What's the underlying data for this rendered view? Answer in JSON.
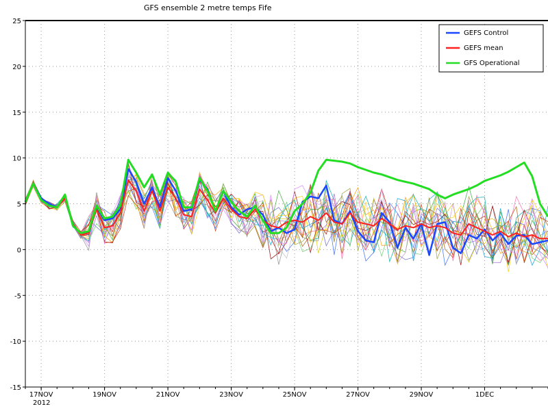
{
  "chart_data": {
    "type": "line",
    "title": "GFS  ensemble 2 metre temps Fife",
    "xlabel": "",
    "ylabel": "",
    "ylim": [
      -15,
      25
    ],
    "yticks": [
      -15,
      -10,
      -5,
      0,
      5,
      10,
      15,
      20,
      25
    ],
    "xlim": [
      "2012-11-16 12:00",
      "2012-12-03 00:00"
    ],
    "xtick_labels": [
      "17NOV",
      "19NOV",
      "21NOV",
      "23NOV",
      "25NOV",
      "27NOV",
      "29NOV",
      "1DEC"
    ],
    "xtick_year_label": "2012",
    "grid": true,
    "legend_position": "top-right",
    "x_dates": [
      "2012-11-16 12:00",
      "2012-11-16 18:00",
      "2012-11-17 00:00",
      "2012-11-17 06:00",
      "2012-11-17 12:00",
      "2012-11-17 18:00",
      "2012-11-18 00:00",
      "2012-11-18 06:00",
      "2012-11-18 12:00",
      "2012-11-18 18:00",
      "2012-11-19 00:00",
      "2012-11-19 06:00",
      "2012-11-19 12:00",
      "2012-11-19 18:00",
      "2012-11-20 00:00",
      "2012-11-20 06:00",
      "2012-11-20 12:00",
      "2012-11-20 18:00",
      "2012-11-21 00:00",
      "2012-11-21 06:00",
      "2012-11-21 12:00",
      "2012-11-21 18:00",
      "2012-11-22 00:00",
      "2012-11-22 06:00",
      "2012-11-22 12:00",
      "2012-11-22 18:00",
      "2012-11-23 00:00",
      "2012-11-23 06:00",
      "2012-11-23 12:00",
      "2012-11-23 18:00",
      "2012-11-24 00:00",
      "2012-11-24 06:00",
      "2012-11-24 12:00",
      "2012-11-24 18:00",
      "2012-11-25 00:00",
      "2012-11-25 06:00",
      "2012-11-25 12:00",
      "2012-11-25 18:00",
      "2012-11-26 00:00",
      "2012-11-26 06:00",
      "2012-11-26 12:00",
      "2012-11-26 18:00",
      "2012-11-27 00:00",
      "2012-11-27 06:00",
      "2012-11-27 12:00",
      "2012-11-27 18:00",
      "2012-11-28 00:00",
      "2012-11-28 06:00",
      "2012-11-28 12:00",
      "2012-11-28 18:00",
      "2012-11-29 00:00",
      "2012-11-29 06:00",
      "2012-11-29 12:00",
      "2012-11-29 18:00",
      "2012-11-30 00:00",
      "2012-11-30 06:00",
      "2012-11-30 12:00",
      "2012-11-30 18:00",
      "2012-12-01 00:00",
      "2012-12-01 06:00",
      "2012-12-01 12:00",
      "2012-12-01 18:00",
      "2012-12-02 00:00",
      "2012-12-02 06:00",
      "2012-12-02 12:00",
      "2012-12-02 18:00",
      "2012-12-03 00:00"
    ],
    "series": [
      {
        "name": "GEFS Control",
        "color": "#1a47ff",
        "width": 2.5,
        "values": [
          5.2,
          7.2,
          5.6,
          5.0,
          4.6,
          6.0,
          2.6,
          1.8,
          1.9,
          4.6,
          3.2,
          3.4,
          4.4,
          8.8,
          7.4,
          5.0,
          6.8,
          4.6,
          7.8,
          6.4,
          4.2,
          4.4,
          7.6,
          6.6,
          4.2,
          6.4,
          4.6,
          3.8,
          4.4,
          4.6,
          3.8,
          2.0,
          2.4,
          1.8,
          2.2,
          5.2,
          5.8,
          5.6,
          7.0,
          3.2,
          2.8,
          4.2,
          2.0,
          1.0,
          0.8,
          4.0,
          3.0,
          0.2,
          2.4,
          1.2,
          2.8,
          -0.6,
          2.8,
          3.0,
          0.2,
          -0.4,
          1.6,
          1.2,
          2.2,
          1.0,
          1.8,
          0.6,
          1.5,
          1.6,
          0.6,
          0.8,
          1.0
        ]
      },
      {
        "name": "GEFS mean",
        "color": "#ff2020",
        "width": 2,
        "values": [
          5.2,
          7.2,
          5.4,
          4.8,
          4.6,
          5.6,
          2.8,
          1.6,
          1.8,
          4.4,
          2.4,
          2.6,
          4.0,
          7.6,
          6.4,
          4.2,
          6.4,
          4.2,
          6.8,
          5.6,
          3.8,
          3.6,
          6.6,
          5.4,
          4.0,
          5.6,
          4.4,
          3.6,
          3.4,
          4.4,
          3.2,
          2.6,
          2.4,
          3.0,
          3.2,
          3.0,
          3.6,
          3.2,
          4.0,
          3.0,
          2.8,
          4.0,
          3.0,
          2.8,
          2.6,
          3.4,
          2.8,
          2.2,
          2.6,
          2.4,
          2.8,
          2.4,
          2.6,
          2.4,
          1.8,
          1.6,
          2.8,
          2.4,
          2.0,
          1.6,
          2.0,
          1.4,
          1.8,
          1.4,
          1.6,
          1.2,
          1.2
        ]
      },
      {
        "name": "GFS Operational",
        "color": "#22dd22",
        "width": 3,
        "values": [
          5.2,
          7.2,
          5.4,
          4.8,
          4.6,
          6.0,
          2.6,
          1.8,
          2.0,
          4.8,
          3.4,
          3.6,
          4.8,
          9.8,
          8.4,
          6.8,
          8.2,
          6.0,
          8.4,
          7.4,
          4.6,
          4.6,
          7.8,
          6.4,
          4.2,
          6.4,
          5.2,
          4.2,
          3.6,
          4.8,
          3.2,
          1.8,
          1.8,
          2.4,
          4.2,
          5.0,
          6.2,
          8.6,
          9.8,
          9.7,
          9.6,
          9.4,
          9.0,
          8.7,
          8.4,
          8.2,
          7.9,
          7.6,
          7.4,
          7.2,
          6.9,
          6.6,
          6.0,
          5.6,
          6.0,
          6.3,
          6.6,
          7.0,
          7.5,
          7.8,
          8.1,
          8.5,
          9.0,
          9.5,
          8.0,
          5.0,
          3.6
        ]
      }
    ]
  }
}
